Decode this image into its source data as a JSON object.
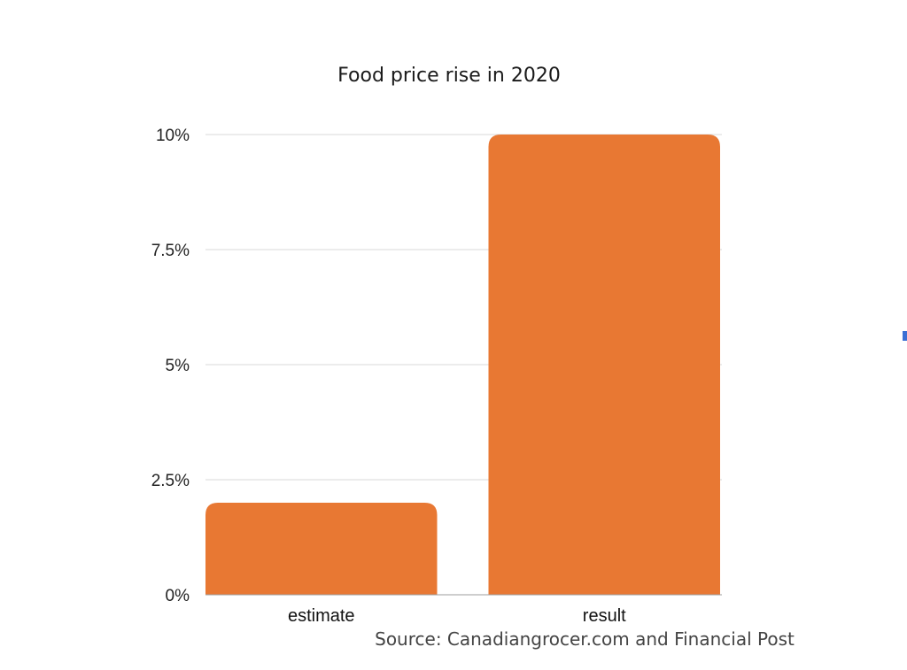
{
  "chart_data": {
    "type": "bar",
    "title": "Food price rise in 2020",
    "categories": [
      "estimate",
      "result"
    ],
    "values": [
      2,
      10
    ],
    "unit": "%",
    "ylim": [
      0,
      10
    ],
    "yticks": [
      0,
      2.5,
      5,
      7.5,
      10
    ],
    "ytick_labels": [
      "0%",
      "2.5%",
      "5%",
      "7.5%",
      "10%"
    ],
    "xlabel": "",
    "ylabel": "",
    "grid": true,
    "legend": "none",
    "colors": {
      "bar": "#e87833",
      "accent_marker": "#3b6fd4"
    },
    "source": "Source:  Canadiangrocer.com and Financial Post"
  }
}
